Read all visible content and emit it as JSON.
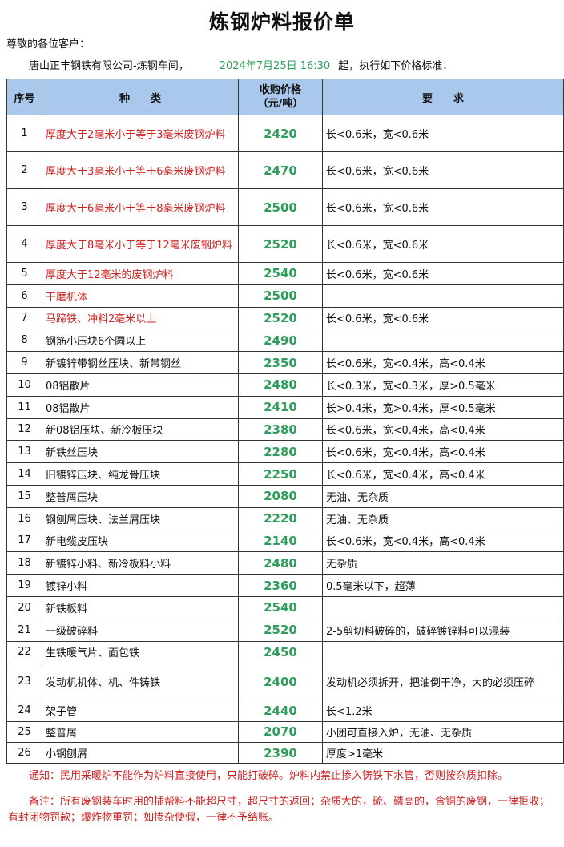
{
  "title": "炼钢炉料报价单",
  "greeting": "尊敬的各位客户：",
  "company": "唐山正丰钢铁有限公司-炼钢车间，",
  "datetime": "2024年7月25日 16:30",
  "intro_tail": "起，执行如下价格标准：",
  "headers": {
    "index": "序号",
    "type": "种　　类",
    "price": "收购价格\n（元/吨）",
    "req": "要　　求"
  },
  "colors": {
    "price": "#2e9e5b",
    "red": "#cc2222",
    "header_bg": "#a9c8ec"
  },
  "rows": [
    {
      "no": "1",
      "type": "厚度大于2毫米小于等于3毫米废钢炉料",
      "price": "2420",
      "req": "长<0.6米，宽<0.6米",
      "red": true
    },
    {
      "no": "2",
      "type": "厚度大于3毫米小于等于6毫米废钢炉料",
      "price": "2470",
      "req": "长<0.6米，宽<0.6米",
      "red": true
    },
    {
      "no": "3",
      "type": "厚度大于6毫米小于等于8毫米废钢炉料",
      "price": "2500",
      "req": "长<0.6米，宽<0.6米",
      "red": true
    },
    {
      "no": "4",
      "type": "厚度大于8毫米小于等于12毫米废钢炉料",
      "price": "2520",
      "req": "长<0.6米，宽<0.6米",
      "red": true
    },
    {
      "no": "5",
      "type": "厚度大于12毫米的废钢炉料",
      "price": "2540",
      "req": "长<0.6米，宽<0.6米",
      "red": true
    },
    {
      "no": "6",
      "type": "干磨机体",
      "price": "2500",
      "req": "",
      "red": true
    },
    {
      "no": "7",
      "type": "马蹄铁、冲料2毫米以上",
      "price": "2520",
      "req": "长<0.6米，宽<0.6米",
      "red": true
    },
    {
      "no": "8",
      "type": "钢筋小压块6个圆以上",
      "price": "2490",
      "req": ""
    },
    {
      "no": "9",
      "type": "新镀锌带钢丝压块、新带钢丝",
      "price": "2350",
      "req": "长<0.6米，宽<0.4米，高<0.4米"
    },
    {
      "no": "10",
      "type": "08铝散片",
      "price": "2480",
      "req": "长<0.3米，宽<0.3米，厚>0.5毫米"
    },
    {
      "no": "11",
      "type": "08铝散片",
      "price": "2410",
      "req": "长>0.4米，宽>0.4米，厚<0.5毫米"
    },
    {
      "no": "12",
      "type": "新08铝压块、新冷板压块",
      "price": "2380",
      "req": "长<0.6米，宽<0.4米，高<0.4米"
    },
    {
      "no": "13",
      "type": "新铁丝压块",
      "price": "2280",
      "req": "长<0.6米，宽<0.4米，高<0.4米"
    },
    {
      "no": "14",
      "type": "旧镀锌压块、纯龙骨压块",
      "price": "2250",
      "req": "长<0.6米，宽<0.4米，高<0.4米"
    },
    {
      "no": "15",
      "type": "整普屑压块",
      "price": "2080",
      "req": "无油、无杂质"
    },
    {
      "no": "16",
      "type": "钢刨屑压块、法兰屑压块",
      "price": "2220",
      "req": "无油、无杂质"
    },
    {
      "no": "17",
      "type": "新电缆皮压块",
      "price": "2140",
      "req": "长<0.6米，宽<0.4米，高<0.4米"
    },
    {
      "no": "18",
      "type": "新镀锌小料、新冷板料小料",
      "price": "2480",
      "req": "无杂质"
    },
    {
      "no": "19",
      "type": "镀锌小料",
      "price": "2360",
      "req": "0.5毫米以下，超薄"
    },
    {
      "no": "20",
      "type": "新铁板料",
      "price": "2540",
      "req": ""
    },
    {
      "no": "21",
      "type": "一级破碎料",
      "price": "2520",
      "req": "2-5剪切料破碎的，破碎镀锌料可以混装"
    },
    {
      "no": "22",
      "type": "生铁暖气片、面包铁",
      "price": "2450",
      "req": ""
    },
    {
      "no": "23",
      "type": "发动机机体、机、件铸铁",
      "price": "2400",
      "req": "发动机必须拆开，把油倒干净，大的必须压碎"
    },
    {
      "no": "24",
      "type": "架子管",
      "price": "2440",
      "req": "长<1.2米"
    },
    {
      "no": "25",
      "type": "整普屑",
      "price": "2070",
      "req": "小团可直接入炉，无油、无杂质"
    },
    {
      "no": "26",
      "type": "小钢刨屑",
      "price": "2390",
      "req": "厚度>1毫米"
    }
  ],
  "notice": "通知：民用采暖炉不能作为炉料直接使用，只能打破碎。炉料内禁止掺入铸铁下水管，否则按杂质扣除。",
  "remark": "备注：所有废钢装车时用的插帮料不能超尺寸，超尺寸的返回；杂质大的，硫、磷高的，含铜的废钢，一律拒收；有封闭物罚款；爆炸物重罚；如掺杂使假，一律不予结账。"
}
